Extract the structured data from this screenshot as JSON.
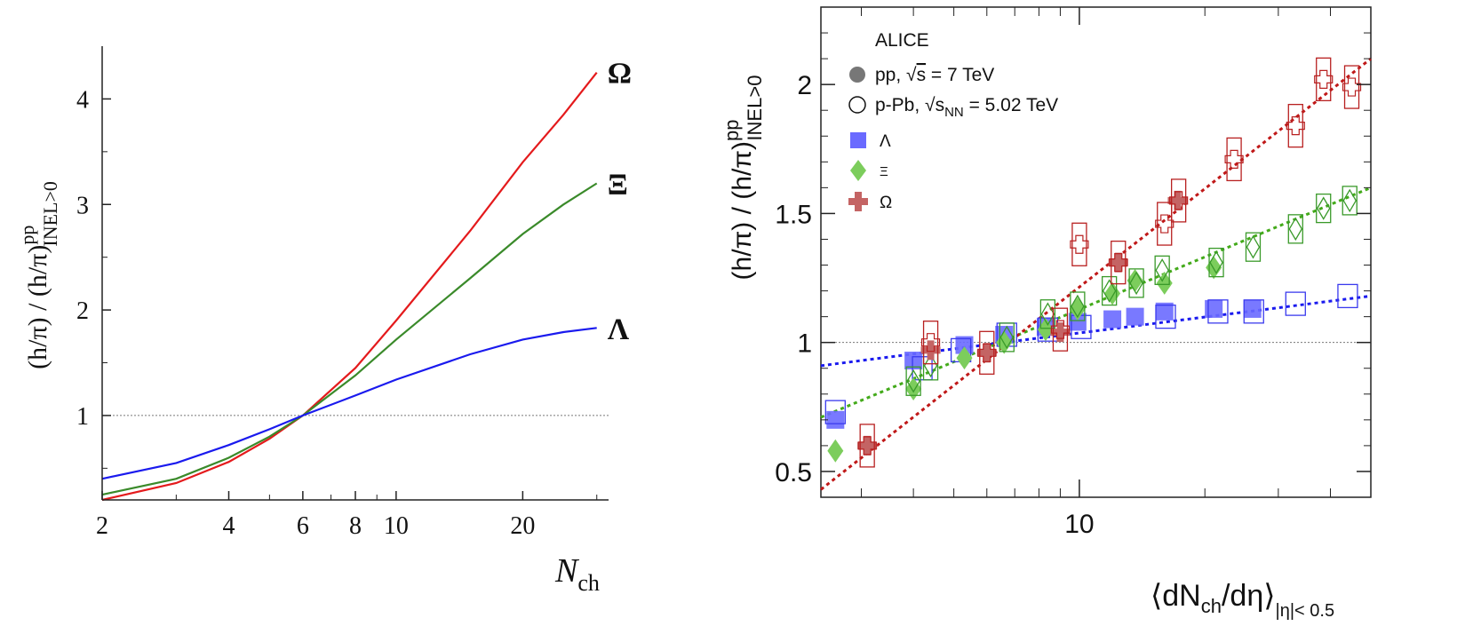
{
  "chart_data": [
    {
      "type": "line",
      "x_scale": "log",
      "xlabel_main": "N",
      "xlabel_sub": "ch",
      "ylabel_text": "(h/π) / (h/π)",
      "ylabel_sup": "pp",
      "ylabel_sub": "INEL>0",
      "xlim": [
        2,
        32
      ],
      "ylim": [
        0.2,
        4.5
      ],
      "x_ticks": [
        2,
        4,
        6,
        8,
        10,
        20
      ],
      "x_tick_labels": [
        "2",
        "4",
        "6",
        "8",
        "10",
        "20"
      ],
      "y_ticks": [
        1,
        2,
        3,
        4
      ],
      "y_tick_labels": [
        "1",
        "2",
        "3",
        "4"
      ],
      "reference_line": 1,
      "series": [
        {
          "name": "Ω",
          "color": "#e41a1c",
          "x": [
            2,
            3,
            4,
            5,
            6,
            8,
            10,
            15,
            20,
            25,
            30
          ],
          "y": [
            0.2,
            0.36,
            0.56,
            0.78,
            1.0,
            1.45,
            1.9,
            2.75,
            3.4,
            3.85,
            4.25
          ]
        },
        {
          "name": "Ξ",
          "color": "#3a8a2a",
          "x": [
            2,
            3,
            4,
            5,
            6,
            8,
            10,
            15,
            20,
            25,
            30
          ],
          "y": [
            0.25,
            0.4,
            0.6,
            0.8,
            1.0,
            1.38,
            1.72,
            2.3,
            2.72,
            3.0,
            3.2
          ]
        },
        {
          "name": "Λ",
          "color": "#1a1aee",
          "x": [
            2,
            3,
            4,
            5,
            6,
            8,
            10,
            15,
            20,
            25,
            30
          ],
          "y": [
            0.4,
            0.55,
            0.72,
            0.87,
            1.0,
            1.19,
            1.34,
            1.58,
            1.72,
            1.79,
            1.83
          ]
        }
      ]
    },
    {
      "type": "scatter",
      "x_scale": "log",
      "xlabel_main": "⟨dN",
      "xlabel_mid": "/dη⟩",
      "xlabel_sub1": "ch",
      "xlabel_sub2": "|η|< 0.5",
      "ylabel_text": "(h/π) / (h/π)",
      "ylabel_sup": "pp",
      "ylabel_sub": "INEL>0",
      "xlim": [
        2.4,
        50
      ],
      "ylim": [
        0.4,
        2.3
      ],
      "x_ticks": [
        10
      ],
      "x_tick_labels": [
        "10"
      ],
      "y_ticks": [
        0.5,
        1,
        1.5,
        2
      ],
      "y_tick_labels": [
        "0.5",
        "1",
        "1.5",
        "2"
      ],
      "reference_line": 1,
      "legend": {
        "title": "ALICE",
        "pp_label_a": "pp, ",
        "pp_label_s": "s",
        "pp_label_b": " = 7 TeV",
        "ppb_label_a": "p-Pb, ",
        "ppb_label_s": "s",
        "ppb_label_sub": "NN",
        "ppb_label_b": " = 5.02 TeV",
        "lambda": "Λ",
        "xi": "Ξ",
        "omega": "Ω",
        "position": "top-left"
      },
      "fits": [
        {
          "name": "Λ",
          "color": "#1a1aee",
          "x": [
            2.4,
            50
          ],
          "y": [
            0.91,
            1.18
          ]
        },
        {
          "name": "Ξ",
          "color": "#43aa1a",
          "x": [
            2.4,
            50
          ],
          "y": [
            0.71,
            1.6
          ]
        },
        {
          "name": "Ω",
          "color": "#c01818",
          "x": [
            2.4,
            50
          ],
          "y": [
            0.43,
            2.1
          ]
        }
      ],
      "series": [
        {
          "name": "Λ pp",
          "marker": "square",
          "filled": true,
          "color": "#6a6aff",
          "edge": "#4040ee",
          "x": [
            2.6,
            4.0,
            5.3,
            6.6,
            8.3,
            9.9,
            12.0,
            13.6,
            16.0,
            21.0,
            26.0
          ],
          "y": [
            0.7,
            0.93,
            0.99,
            1.03,
            1.06,
            1.08,
            1.09,
            1.1,
            1.12,
            1.13,
            1.13
          ]
        },
        {
          "name": "Λ p-Pb",
          "marker": "square",
          "filled": false,
          "color": "#3a3aee",
          "edge": "#3a3aee",
          "x": [
            2.6,
            4.2,
            5.2,
            6.7,
            8.4,
            10.1,
            16.1,
            21.5,
            26.2,
            33.0,
            44.0
          ],
          "y": [
            0.73,
            0.9,
            0.97,
            1.03,
            1.05,
            1.06,
            1.1,
            1.12,
            1.12,
            1.15,
            1.18
          ]
        },
        {
          "name": "Ξ pp",
          "marker": "diamond",
          "filled": true,
          "color": "#7ccd5c",
          "edge": "#50a030",
          "x": [
            2.6,
            4.0,
            5.3,
            6.6,
            8.3,
            9.9,
            12.0,
            13.6,
            16.0,
            21.0
          ],
          "y": [
            0.58,
            0.82,
            0.94,
            1.0,
            1.05,
            1.13,
            1.19,
            1.24,
            1.23,
            1.29
          ]
        },
        {
          "name": "Ξ p-Pb",
          "marker": "diamond",
          "filled": false,
          "color": "#3a9a2a",
          "edge": "#3a9a2a",
          "x": [
            4.0,
            4.4,
            6.7,
            8.4,
            9.9,
            11.8,
            13.7,
            15.8,
            21.3,
            26.1,
            33.0,
            38.5,
            44.5
          ],
          "y": [
            0.85,
            0.91,
            1.02,
            1.11,
            1.14,
            1.2,
            1.23,
            1.28,
            1.31,
            1.37,
            1.44,
            1.52,
            1.55
          ]
        },
        {
          "name": "Ω pp",
          "marker": "cross",
          "filled": true,
          "color": "#c46464",
          "edge": "#a03030",
          "x": [
            3.1,
            4.4,
            6.0,
            9.0,
            12.4,
            17.2
          ],
          "y": [
            0.6,
            0.97,
            0.96,
            1.04,
            1.31,
            1.55
          ]
        },
        {
          "name": "Ω p-Pb",
          "marker": "cross",
          "filled": false,
          "color": "#b82020",
          "edge": "#b82020",
          "x": [
            3.1,
            4.4,
            6.0,
            9.0,
            10.0,
            12.4,
            16.0,
            17.3,
            23.5,
            33.0,
            38.5,
            45.0
          ],
          "y": [
            0.6,
            1.0,
            0.96,
            1.05,
            1.38,
            1.31,
            1.46,
            1.55,
            1.71,
            1.84,
            2.02,
            1.99
          ]
        }
      ]
    }
  ]
}
